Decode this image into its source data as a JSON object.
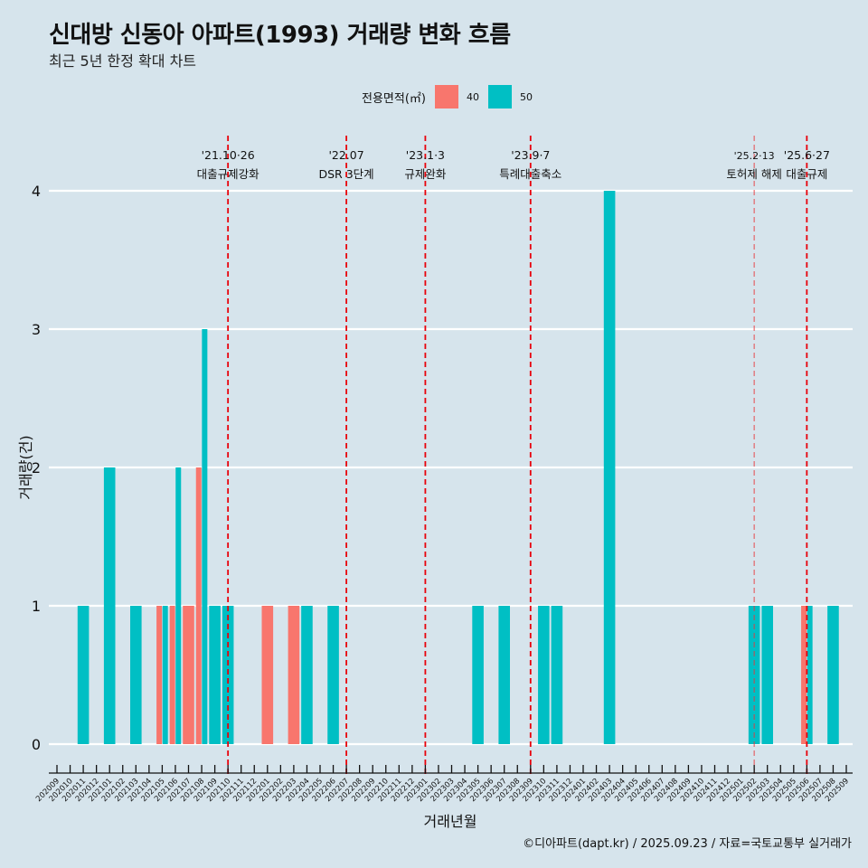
{
  "header": {
    "title": "신대방 신동아 아파트(1993) 거래량 변화 흐름",
    "subtitle": "최근 5년 한정 확대 차트"
  },
  "legend": {
    "title": "전용면적(㎡)",
    "items": [
      {
        "label": "40",
        "color": "#f8766d"
      },
      {
        "label": "50",
        "color": "#00bfc4"
      }
    ]
  },
  "caption": "©디아파트(dapt.kr) / 2025.09.23 / 자료=국토교통부 실거래가",
  "chart_data": {
    "type": "bar",
    "title": "신대방 신동아 아파트(1993) 거래량 변화 흐름",
    "subtitle": "최근 5년 한정 확대 차트",
    "xlabel": "거래년월",
    "ylabel": "거래량(건)",
    "ylim": [
      0,
      4
    ],
    "yticks": [
      "0",
      "1",
      "2",
      "3",
      "4"
    ],
    "grid": "horizontal major",
    "legend_position": "top",
    "categories": [
      "202009",
      "202010",
      "202011",
      "202012",
      "202101",
      "202102",
      "202103",
      "202104",
      "202105",
      "202106",
      "202107",
      "202108",
      "202109",
      "202110",
      "202111",
      "202112",
      "202201",
      "202202",
      "202203",
      "202204",
      "202205",
      "202206",
      "202207",
      "202208",
      "202209",
      "202210",
      "202211",
      "202212",
      "202301",
      "202302",
      "202303",
      "202304",
      "202305",
      "202306",
      "202307",
      "202308",
      "202309",
      "202310",
      "202311",
      "202312",
      "202401",
      "202402",
      "202403",
      "202404",
      "202405",
      "202406",
      "202407",
      "202408",
      "202409",
      "202410",
      "202411",
      "202412",
      "202501",
      "202502",
      "202503",
      "202504",
      "202505",
      "202506",
      "202507",
      "202508",
      "202509"
    ],
    "series": [
      {
        "name": "40",
        "color": "#f8766d",
        "points": [
          {
            "x": "202105",
            "y": 1
          },
          {
            "x": "202106",
            "y": 1
          },
          {
            "x": "202107",
            "y": 1
          },
          {
            "x": "202108",
            "y": 2
          },
          {
            "x": "202201",
            "y": 1
          },
          {
            "x": "202203",
            "y": 1
          },
          {
            "x": "202506",
            "y": 1
          }
        ]
      },
      {
        "name": "50",
        "color": "#00bfc4",
        "points": [
          {
            "x": "202011",
            "y": 1
          },
          {
            "x": "202101",
            "y": 2
          },
          {
            "x": "202103",
            "y": 1
          },
          {
            "x": "202105",
            "y": 1
          },
          {
            "x": "202106",
            "y": 2
          },
          {
            "x": "202108",
            "y": 3
          },
          {
            "x": "202109",
            "y": 1
          },
          {
            "x": "202110",
            "y": 1
          },
          {
            "x": "202204",
            "y": 1
          },
          {
            "x": "202206",
            "y": 1
          },
          {
            "x": "202305",
            "y": 1
          },
          {
            "x": "202307",
            "y": 1
          },
          {
            "x": "202310",
            "y": 1
          },
          {
            "x": "202311",
            "y": 1
          },
          {
            "x": "202403",
            "y": 4
          },
          {
            "x": "202502",
            "y": 1
          },
          {
            "x": "202503",
            "y": 1
          },
          {
            "x": "202506",
            "y": 1
          },
          {
            "x": "202508",
            "y": 1
          }
        ]
      }
    ],
    "annotations": [
      {
        "x": "202110",
        "date": "'21.10·26",
        "text": "대출규제강화",
        "style": "dashed"
      },
      {
        "x": "202207",
        "date": "'22.07",
        "text": "DSR 3단계",
        "style": "dashed"
      },
      {
        "x": "202301",
        "date": "'23.1·3",
        "text": "규제완화",
        "style": "dashed"
      },
      {
        "x": "202309",
        "date": "'23.9·7",
        "text": "특례대출축소",
        "style": "dashed"
      },
      {
        "x": "202502",
        "date": "'25.2·13",
        "text": "토허제 해제",
        "style": "light-dashed"
      },
      {
        "x": "202506",
        "date": "'25.6·27",
        "text": "대출규제",
        "style": "dashed"
      }
    ]
  }
}
